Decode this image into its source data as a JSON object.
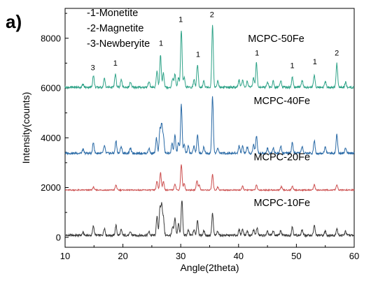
{
  "panel_label": "a)",
  "legend": [
    "-1-Monetite",
    "-2-Magnetite",
    "-3-Newberyite"
  ],
  "chart_data": {
    "type": "line",
    "title": "",
    "xlabel": "Angle(2theta)",
    "ylabel": "Intensity(counts)",
    "xlim": [
      10,
      60
    ],
    "ylim": [
      -400,
      9200
    ],
    "xticks": [
      10,
      20,
      30,
      40,
      50,
      60
    ],
    "yticks": [
      0,
      2000,
      4000,
      6000,
      8000
    ],
    "grid": false,
    "series": [
      {
        "name": "MCPC-10Fe",
        "color": "#3a3a3a",
        "baseline": 80,
        "slope": 1.0,
        "peaks": [
          [
            13.1,
            120
          ],
          [
            14.9,
            380
          ],
          [
            16.8,
            300
          ],
          [
            18.8,
            400
          ],
          [
            19.7,
            220
          ],
          [
            21.3,
            140
          ],
          [
            24.5,
            150
          ],
          [
            25.9,
            750
          ],
          [
            26.4,
            1050
          ],
          [
            26.7,
            1180
          ],
          [
            27.0,
            700
          ],
          [
            28.6,
            320
          ],
          [
            29.0,
            700
          ],
          [
            29.6,
            480
          ],
          [
            30.2,
            1430
          ],
          [
            31.3,
            200
          ],
          [
            32.3,
            230
          ],
          [
            32.9,
            620
          ],
          [
            34.0,
            180
          ],
          [
            35.5,
            870
          ],
          [
            36.4,
            180
          ],
          [
            40.1,
            220
          ],
          [
            40.7,
            260
          ],
          [
            41.5,
            180
          ],
          [
            42.6,
            230
          ],
          [
            43.2,
            300
          ],
          [
            45.0,
            150
          ],
          [
            46.0,
            180
          ],
          [
            47.3,
            200
          ],
          [
            49.3,
            350
          ],
          [
            51.0,
            220
          ],
          [
            53.1,
            400
          ],
          [
            55.0,
            180
          ],
          [
            57.0,
            280
          ],
          [
            58.5,
            160
          ]
        ]
      },
      {
        "name": "MCPC-20Fe",
        "color": "#cc4f4f",
        "baseline": 1900,
        "slope": 0.5,
        "peaks": [
          [
            14.9,
            120
          ],
          [
            18.8,
            200
          ],
          [
            25.9,
            350
          ],
          [
            26.5,
            720
          ],
          [
            27.0,
            350
          ],
          [
            29.0,
            250
          ],
          [
            30.1,
            1030
          ],
          [
            30.6,
            260
          ],
          [
            32.8,
            380
          ],
          [
            33.2,
            200
          ],
          [
            35.5,
            620
          ],
          [
            36.4,
            120
          ],
          [
            40.7,
            150
          ],
          [
            43.1,
            200
          ],
          [
            47.4,
            140
          ],
          [
            49.3,
            160
          ],
          [
            53.1,
            220
          ],
          [
            57.0,
            210
          ]
        ]
      },
      {
        "name": "MCPC-40Fe",
        "color": "#2a6aa6",
        "baseline": 3380,
        "slope": 1.0,
        "peaks": [
          [
            13.1,
            150
          ],
          [
            14.9,
            430
          ],
          [
            16.8,
            300
          ],
          [
            18.8,
            500
          ],
          [
            19.7,
            280
          ],
          [
            21.3,
            200
          ],
          [
            24.5,
            200
          ],
          [
            25.8,
            600
          ],
          [
            26.4,
            950
          ],
          [
            26.7,
            1100
          ],
          [
            27.0,
            700
          ],
          [
            28.5,
            400
          ],
          [
            29.0,
            700
          ],
          [
            29.6,
            450
          ],
          [
            30.1,
            1950
          ],
          [
            30.6,
            350
          ],
          [
            31.3,
            280
          ],
          [
            32.3,
            300
          ],
          [
            32.9,
            720
          ],
          [
            34.0,
            260
          ],
          [
            35.5,
            2300
          ],
          [
            36.4,
            220
          ],
          [
            40.1,
            300
          ],
          [
            40.7,
            300
          ],
          [
            41.5,
            260
          ],
          [
            42.6,
            350
          ],
          [
            43.1,
            720
          ],
          [
            45.0,
            200
          ],
          [
            46.0,
            230
          ],
          [
            47.3,
            300
          ],
          [
            49.3,
            430
          ],
          [
            51.0,
            280
          ],
          [
            53.1,
            500
          ],
          [
            55.0,
            250
          ],
          [
            57.0,
            770
          ],
          [
            58.5,
            200
          ]
        ]
      },
      {
        "name": "MCPC-50Fe",
        "color": "#2fa388",
        "baseline": 6030,
        "slope": 1.0,
        "peaks": [
          [
            13.1,
            120
          ],
          [
            14.9,
            480
          ],
          [
            16.8,
            350
          ],
          [
            18.7,
            520
          ],
          [
            19.7,
            300
          ],
          [
            21.3,
            200
          ],
          [
            24.5,
            250
          ],
          [
            25.9,
            650
          ],
          [
            26.5,
            1300
          ],
          [
            27.0,
            600
          ],
          [
            28.6,
            360
          ],
          [
            29.0,
            520
          ],
          [
            29.6,
            380
          ],
          [
            30.1,
            2310
          ],
          [
            30.6,
            380
          ],
          [
            32.3,
            300
          ],
          [
            32.9,
            920
          ],
          [
            34.0,
            250
          ],
          [
            35.5,
            2500
          ],
          [
            36.4,
            250
          ],
          [
            40.1,
            300
          ],
          [
            40.7,
            300
          ],
          [
            41.5,
            260
          ],
          [
            42.6,
            380
          ],
          [
            43.1,
            1000
          ],
          [
            45.0,
            220
          ],
          [
            46.0,
            240
          ],
          [
            47.3,
            300
          ],
          [
            49.3,
            420
          ],
          [
            51.0,
            280
          ],
          [
            53.1,
            500
          ],
          [
            55.0,
            250
          ],
          [
            57.0,
            950
          ],
          [
            58.5,
            200
          ]
        ]
      }
    ],
    "series_labels": [
      {
        "text": "MCPC-50Fe",
        "x": 46.5,
        "y": 7850
      },
      {
        "text": "MCPC-40Fe",
        "x": 47.5,
        "y": 5350
      },
      {
        "text": "MCPC-20Fe",
        "x": 47.5,
        "y": 3100
      },
      {
        "text": "MCPC-10Fe",
        "x": 47.5,
        "y": 1250
      }
    ],
    "annotations": [
      {
        "text": "3",
        "x": 14.8,
        "y": 6720
      },
      {
        "text": "1",
        "x": 18.7,
        "y": 6900
      },
      {
        "text": "1",
        "x": 26.6,
        "y": 7700
      },
      {
        "text": "1",
        "x": 30.0,
        "y": 8650
      },
      {
        "text": "2",
        "x": 35.4,
        "y": 8850
      },
      {
        "text": "1",
        "x": 33.0,
        "y": 7250
      },
      {
        "text": "1",
        "x": 43.2,
        "y": 7300
      },
      {
        "text": "1",
        "x": 49.3,
        "y": 6800
      },
      {
        "text": "1",
        "x": 53.2,
        "y": 6950
      },
      {
        "text": "2",
        "x": 57.0,
        "y": 7300
      }
    ]
  }
}
